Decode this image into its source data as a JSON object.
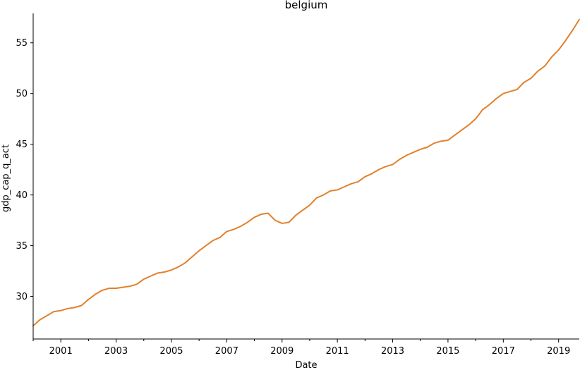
{
  "chart_data": {
    "type": "line",
    "title": "belgium",
    "xlabel": "Date",
    "ylabel": "gdp_cap_q_act",
    "xlim": [
      "2000-01-01",
      "2019-10-01"
    ],
    "ylim": [
      25.8,
      57.9
    ],
    "grid": false,
    "legend": "none",
    "x_ticks": [
      "2001",
      "2003",
      "2005",
      "2007",
      "2009",
      "2011",
      "2013",
      "2015",
      "2017",
      "2019"
    ],
    "x_minor_ticks": [
      "2000",
      "2002",
      "2004",
      "2006",
      "2008",
      "2010",
      "2012",
      "2014",
      "2016",
      "2018"
    ],
    "y_ticks": [
      30,
      35,
      40,
      45,
      50,
      55
    ],
    "x": [
      "2000-01-01",
      "2000-04-01",
      "2000-07-01",
      "2000-10-01",
      "2001-01-01",
      "2001-04-01",
      "2001-07-01",
      "2001-10-01",
      "2002-01-01",
      "2002-04-01",
      "2002-07-01",
      "2002-10-01",
      "2003-01-01",
      "2003-04-01",
      "2003-07-01",
      "2003-10-01",
      "2004-01-01",
      "2004-04-01",
      "2004-07-01",
      "2004-10-01",
      "2005-01-01",
      "2005-04-01",
      "2005-07-01",
      "2005-10-01",
      "2006-01-01",
      "2006-04-01",
      "2006-07-01",
      "2006-10-01",
      "2007-01-01",
      "2007-04-01",
      "2007-07-01",
      "2007-10-01",
      "2008-01-01",
      "2008-04-01",
      "2008-07-01",
      "2008-10-01",
      "2009-01-01",
      "2009-04-01",
      "2009-07-01",
      "2009-10-01",
      "2010-01-01",
      "2010-04-01",
      "2010-07-01",
      "2010-10-01",
      "2011-01-01",
      "2011-04-01",
      "2011-07-01",
      "2011-10-01",
      "2012-01-01",
      "2012-04-01",
      "2012-07-01",
      "2012-10-01",
      "2013-01-01",
      "2013-04-01",
      "2013-07-01",
      "2013-10-01",
      "2014-01-01",
      "2014-04-01",
      "2014-07-01",
      "2014-10-01",
      "2015-01-01",
      "2015-04-01",
      "2015-07-01",
      "2015-10-01",
      "2016-01-01",
      "2016-04-01",
      "2016-07-01",
      "2016-10-01",
      "2017-01-01",
      "2017-04-01",
      "2017-07-01",
      "2017-10-01",
      "2018-01-01",
      "2018-04-01",
      "2018-07-01",
      "2018-10-01",
      "2019-01-01",
      "2019-04-01",
      "2019-07-01",
      "2019-10-01"
    ],
    "series": [
      {
        "values": [
          27.1,
          27.7,
          28.1,
          28.5,
          28.6,
          28.8,
          28.9,
          29.1,
          29.7,
          30.2,
          30.6,
          30.8,
          30.8,
          30.9,
          31.0,
          31.2,
          31.7,
          32.0,
          32.3,
          32.4,
          32.6,
          32.9,
          33.3,
          33.9,
          34.5,
          35.0,
          35.5,
          35.8,
          36.4,
          36.6,
          36.9,
          37.3,
          37.8,
          38.1,
          38.2,
          37.5,
          37.2,
          37.3,
          38.0,
          38.5,
          39.0,
          39.7,
          40.0,
          40.4,
          40.5,
          40.8,
          41.1,
          41.3,
          41.8,
          42.1,
          42.5,
          42.8,
          43.0,
          43.5,
          43.9,
          44.2,
          44.5,
          44.7,
          45.1,
          45.3,
          45.4,
          45.9,
          46.4,
          46.9,
          47.5,
          48.4,
          48.9,
          49.5,
          50.0,
          50.2,
          50.4,
          51.1,
          51.5,
          52.2,
          52.7,
          53.6,
          54.3,
          55.2,
          56.2,
          57.3
        ],
        "color": "#e1812c"
      }
    ]
  }
}
